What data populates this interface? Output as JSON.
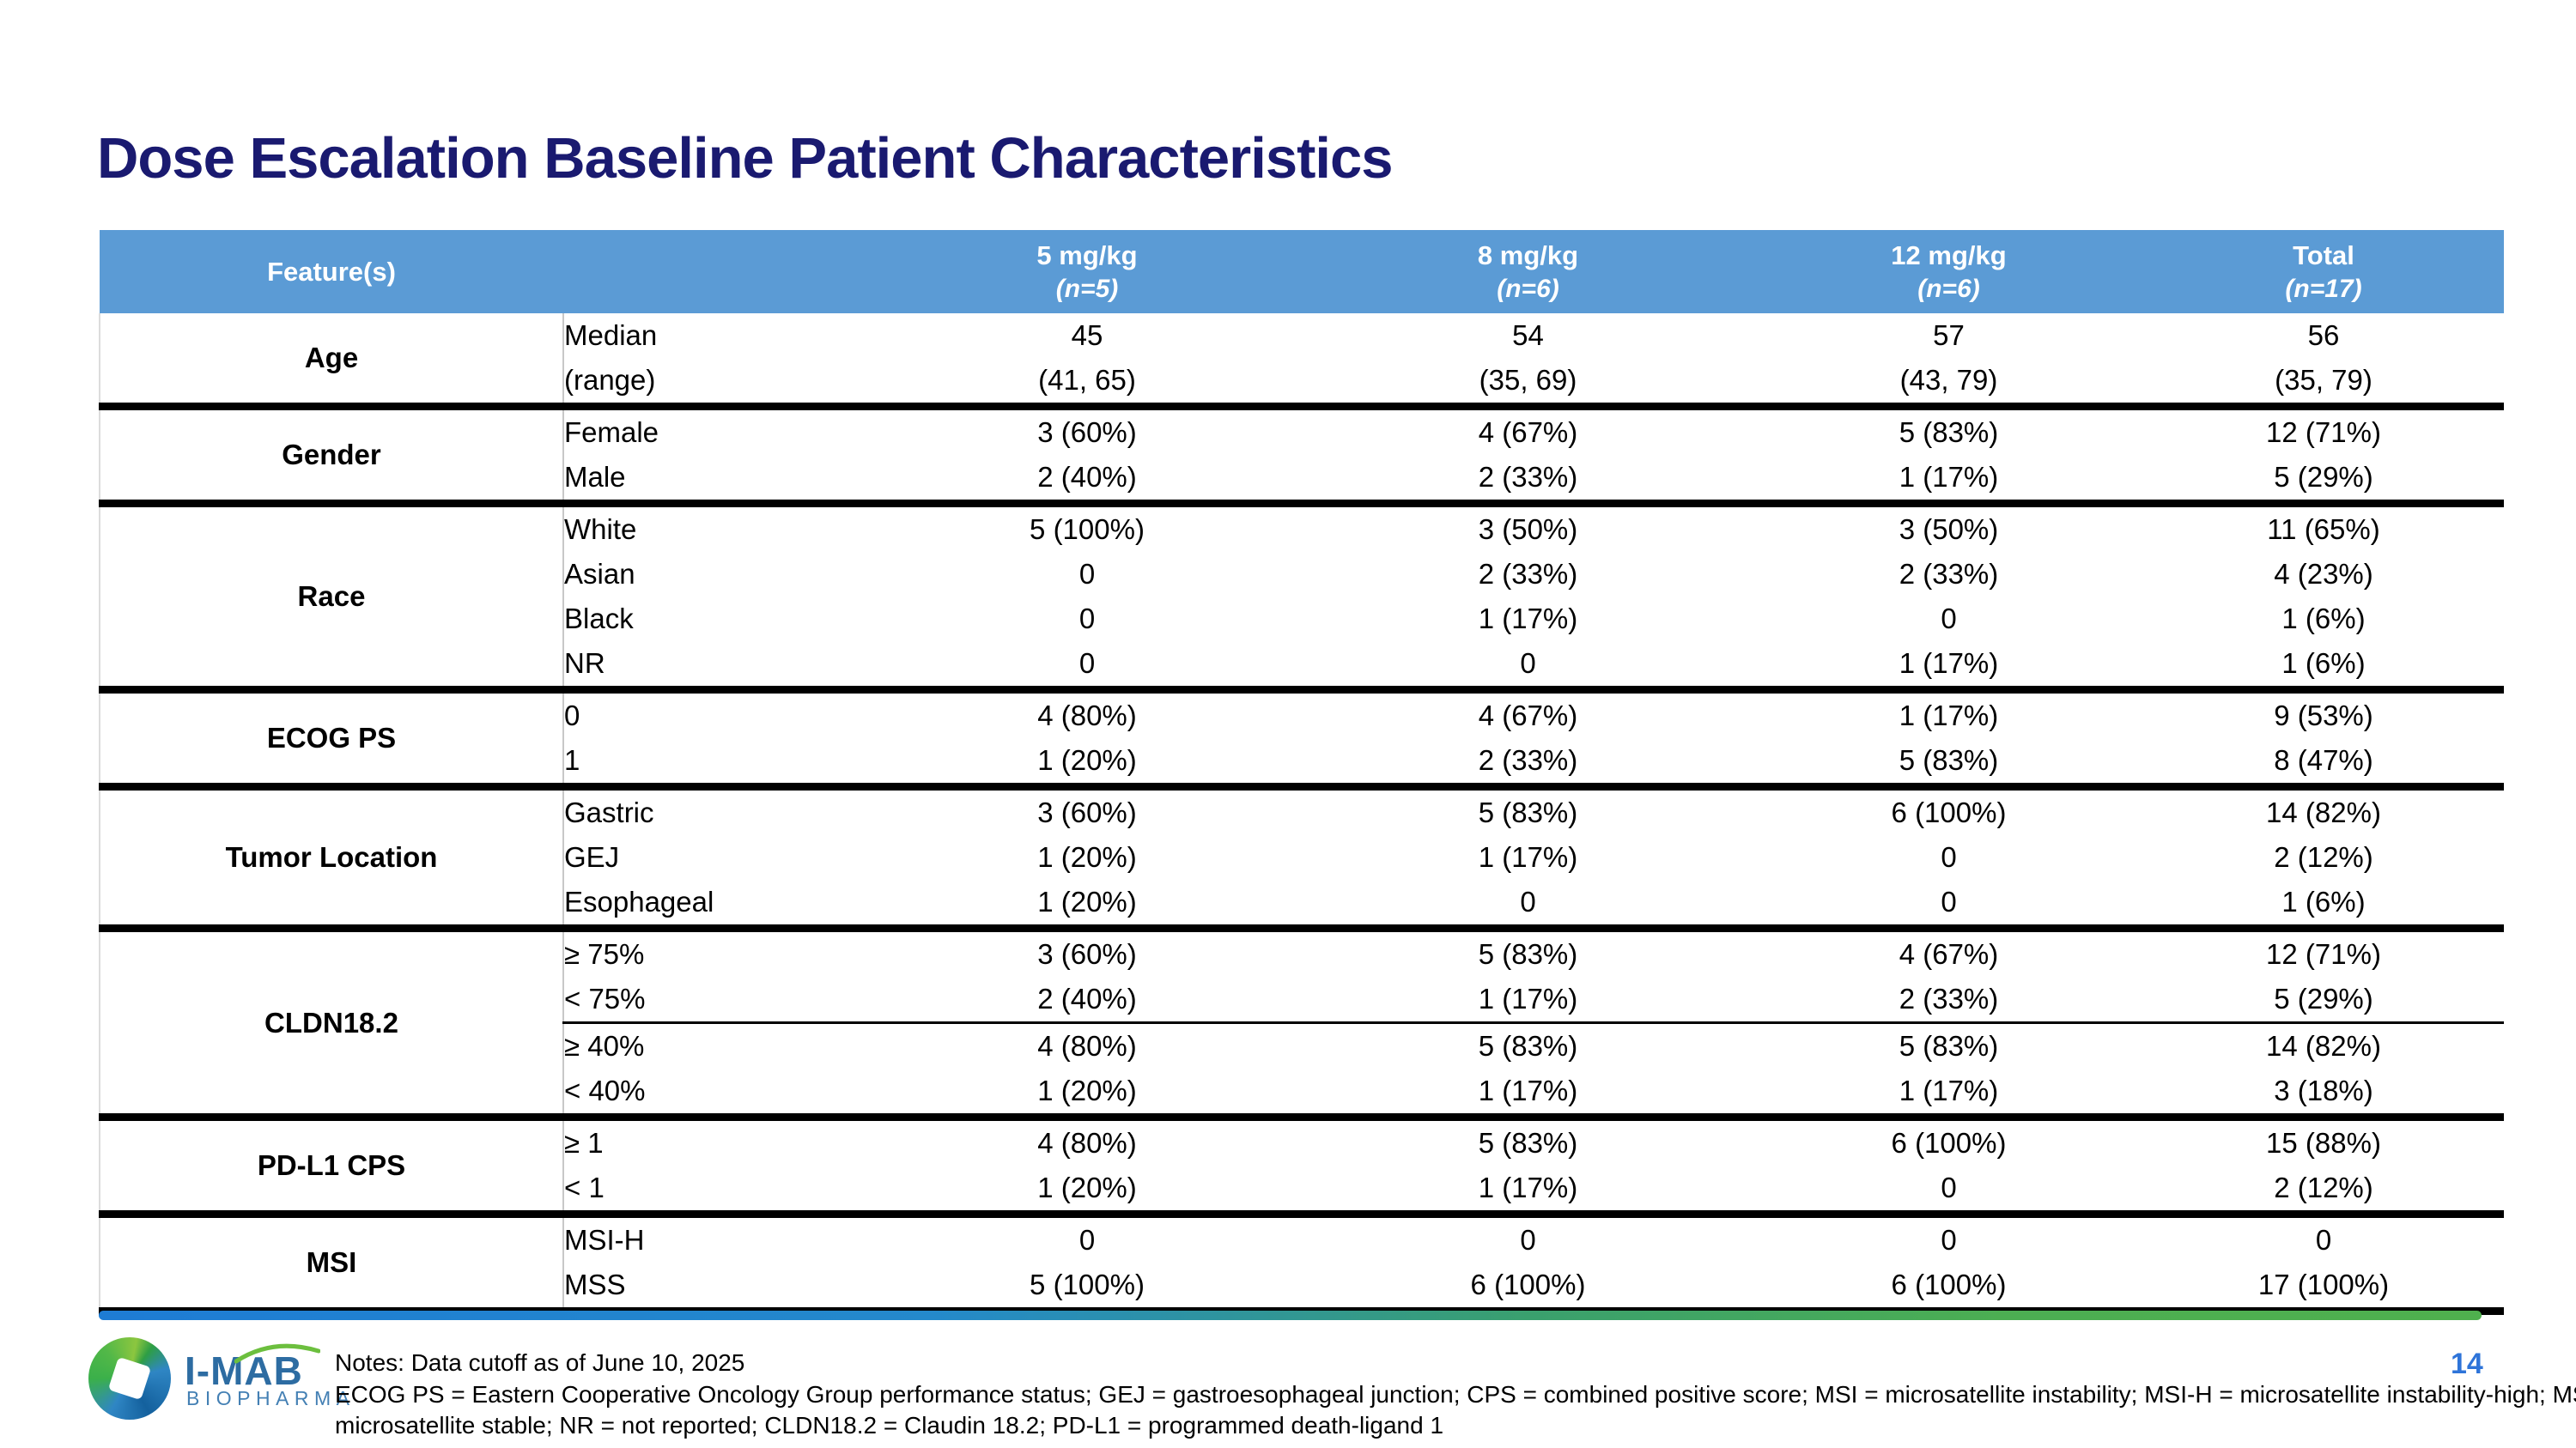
{
  "slide": {
    "title": "Dose Escalation Baseline Patient Characteristics",
    "page_number": "14"
  },
  "table": {
    "feature_header": "Feature(s)",
    "dose_columns": [
      {
        "label": "5 mg/kg",
        "n": "(n=5)"
      },
      {
        "label": "8 mg/kg",
        "n": "(n=6)"
      },
      {
        "label": "12 mg/kg",
        "n": "(n=6)"
      },
      {
        "label": "Total",
        "n": "(n=17)"
      }
    ],
    "groups": [
      {
        "feature": "Age",
        "rows": [
          {
            "label": "Median\n(range)",
            "values": [
              "45\n(41, 65)",
              "54\n(35, 69)",
              "57\n(43, 79)",
              "56\n(35, 79)"
            ]
          }
        ]
      },
      {
        "feature": "Gender",
        "rows": [
          {
            "label": "Female",
            "values": [
              "3 (60%)",
              "4 (67%)",
              "5 (83%)",
              "12 (71%)"
            ]
          },
          {
            "label": "Male",
            "values": [
              "2 (40%)",
              "2 (33%)",
              "1 (17%)",
              "5 (29%)"
            ]
          }
        ]
      },
      {
        "feature": "Race",
        "rows": [
          {
            "label": "White",
            "values": [
              "5 (100%)",
              "3 (50%)",
              "3 (50%)",
              "11 (65%)"
            ]
          },
          {
            "label": "Asian",
            "values": [
              "0",
              "2 (33%)",
              "2 (33%)",
              "4 (23%)"
            ]
          },
          {
            "label": "Black",
            "values": [
              "0",
              "1 (17%)",
              "0",
              "1 (6%)"
            ]
          },
          {
            "label": "NR",
            "values": [
              "0",
              "0",
              "1 (17%)",
              "1 (6%)"
            ]
          }
        ]
      },
      {
        "feature": "ECOG PS",
        "rows": [
          {
            "label": "0",
            "values": [
              "4 (80%)",
              "4 (67%)",
              "1 (17%)",
              "9 (53%)"
            ]
          },
          {
            "label": "1",
            "values": [
              "1 (20%)",
              "2 (33%)",
              "5 (83%)",
              "8 (47%)"
            ]
          }
        ]
      },
      {
        "feature": "Tumor Location",
        "rows": [
          {
            "label": "Gastric",
            "values": [
              "3 (60%)",
              "5 (83%)",
              "6 (100%)",
              "14 (82%)"
            ]
          },
          {
            "label": "GEJ",
            "values": [
              "1 (20%)",
              "1 (17%)",
              "0",
              "2 (12%)"
            ]
          },
          {
            "label": "Esophageal",
            "values": [
              "1 (20%)",
              "0",
              "0",
              "1 (6%)"
            ]
          }
        ]
      },
      {
        "feature": "CLDN18.2",
        "rows": [
          {
            "label": "≥ 75%",
            "values": [
              "3 (60%)",
              "5 (83%)",
              "4 (67%)",
              "12 (71%)"
            ]
          },
          {
            "label": "< 75%",
            "values": [
              "2 (40%)",
              "1 (17%)",
              "2 (33%)",
              "5 (29%)"
            ],
            "divider_after": true
          },
          {
            "label": "≥ 40%",
            "values": [
              "4 (80%)",
              "5 (83%)",
              "5 (83%)",
              "14 (82%)"
            ]
          },
          {
            "label": "< 40%",
            "values": [
              "1 (20%)",
              "1 (17%)",
              "1 (17%)",
              "3 (18%)"
            ]
          }
        ]
      },
      {
        "feature": "PD-L1 CPS",
        "rows": [
          {
            "label": "≥ 1",
            "values": [
              "4 (80%)",
              "5 (83%)",
              "6 (100%)",
              "15 (88%)"
            ]
          },
          {
            "label": "< 1",
            "values": [
              "1 (20%)",
              "1 (17%)",
              "0",
              "2 (12%)"
            ]
          }
        ]
      },
      {
        "feature": "MSI",
        "rows": [
          {
            "label": "MSI-H",
            "values": [
              "0",
              "0",
              "0",
              "0"
            ]
          },
          {
            "label": "MSS",
            "values": [
              "5 (100%)",
              "6 (100%)",
              "6 (100%)",
              "17 (100%)"
            ]
          }
        ]
      }
    ]
  },
  "footer": {
    "logo": {
      "name": "I-MAB",
      "sub": "BIOPHARMA"
    },
    "notes_lines": [
      "Notes: Data cutoff as of June 10, 2025",
      "ECOG PS =  Eastern Cooperative Oncology Group performance status; GEJ = gastroesophageal junction; CPS = combined positive score; MSI = microsatellite instability; MSI-H = microsatellite instability-high; MSS =",
      "microsatellite stable; NR = not reported; CLDN18.2 = Claudin 18.2; PD-L1 = programmed death-ligand 1"
    ]
  },
  "colors": {
    "header_blue": "#5B9BD5",
    "feature_column_gray": "#F2F2F2",
    "title_navy": "#1A1A70",
    "page_number_blue": "#2E74D9",
    "bar_gradient_start": "#1E7CD4",
    "bar_gradient_end": "#4FB04E",
    "logo_blue": "#2D6CA2",
    "logo_green": "#6CBF3E"
  }
}
